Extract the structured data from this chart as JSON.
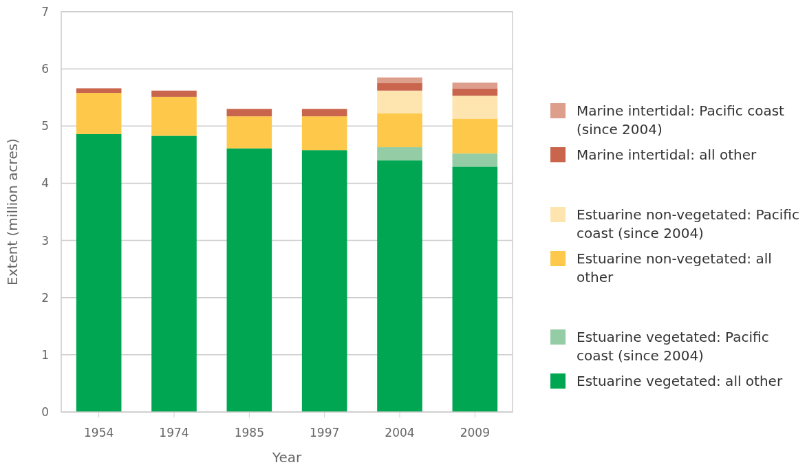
{
  "chart_data": {
    "type": "bar",
    "stacked": true,
    "xlabel": "Year",
    "ylabel": "Extent (million acres)",
    "categories": [
      "1954",
      "1974",
      "1985",
      "1997",
      "2004",
      "2009"
    ],
    "series": [
      {
        "name": "Estuarine vegetated: all other",
        "color": "#00a651",
        "values": [
          4.86,
          4.83,
          4.61,
          4.58,
          4.4,
          4.29
        ]
      },
      {
        "name": "Estuarine vegetated: Pacific coast (since 2004)",
        "color": "#93cca5",
        "values": [
          null,
          null,
          null,
          null,
          0.23,
          0.23
        ]
      },
      {
        "name": "Estuarine non-vegetated: all other",
        "color": "#fec94a",
        "values": [
          0.72,
          0.68,
          0.56,
          0.59,
          0.59,
          0.61
        ]
      },
      {
        "name": "Estuarine non-vegetated: Pacific coast (since 2004)",
        "color": "#fee4ae",
        "values": [
          null,
          null,
          null,
          null,
          0.4,
          0.4
        ]
      },
      {
        "name": "Marine intertidal: all other",
        "color": "#c8654c",
        "values": [
          0.08,
          0.11,
          0.13,
          0.13,
          0.13,
          0.13
        ]
      },
      {
        "name": "Marine intertidal: Pacific coast (since 2004)",
        "color": "#dd9e8c",
        "values": [
          null,
          null,
          null,
          null,
          0.1,
          0.1
        ]
      }
    ],
    "ylim": [
      0,
      7
    ],
    "yticks": [
      0,
      1,
      2,
      3,
      4,
      5,
      6,
      7
    ],
    "grid": "y",
    "legend": "right"
  }
}
